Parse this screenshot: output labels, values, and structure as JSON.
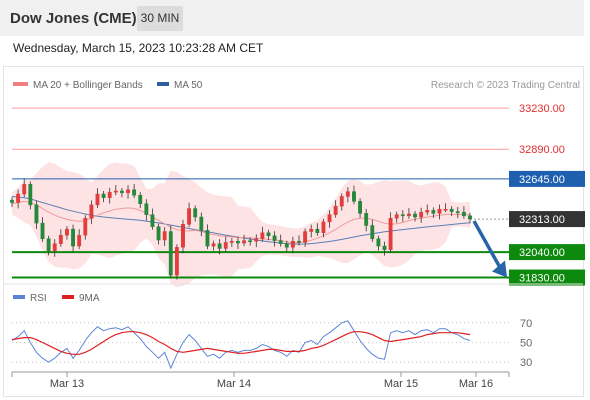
{
  "header": {
    "title": "Dow Jones (CME)",
    "timeframe": "30 MIN"
  },
  "datetime": "Wednesday, March 15, 2023 10:23:28 AM CET",
  "legend": {
    "ma20": {
      "label": "MA 20 + Bollinger Bands",
      "color": "#f08080"
    },
    "ma50": {
      "label": "MA 50",
      "color": "#2e5f9e"
    }
  },
  "research": "Research © 2023 Trading Central",
  "rsi_legend": {
    "rsi": {
      "label": "RSI",
      "color": "#5b84d8"
    },
    "ma9": {
      "label": "9MA",
      "color": "#e02020"
    }
  },
  "colors": {
    "bull": "#e23c3c",
    "bear": "#26883a",
    "support": "#0d8a0d",
    "resistance": "#ff9a9a",
    "pivot": "#1f5fb0",
    "last": "#333333",
    "arrow": "#2a64a8",
    "band": "#fde3e3"
  },
  "chart_data": {
    "type": "candlestick",
    "y_range": [
      31760,
      33330
    ],
    "last_price": 32313,
    "levels": [
      {
        "value": 33230,
        "label": "33230.00",
        "kind": "resistance"
      },
      {
        "value": 32890,
        "label": "32890.00",
        "kind": "resistance"
      },
      {
        "value": 32645,
        "label": "32645.00",
        "kind": "pivot"
      },
      {
        "value": 32313,
        "label": "32313.00",
        "kind": "last"
      },
      {
        "value": 32040,
        "label": "32040.00",
        "kind": "support"
      },
      {
        "value": 31830,
        "label": "31830.00",
        "kind": "support"
      }
    ],
    "x_ticks": [
      "Mar 13",
      "Mar 14",
      "Mar 15",
      "Mar 16"
    ],
    "forecast": {
      "from": 32313,
      "to": 31830
    },
    "closes": [
      32450,
      32520,
      32600,
      32430,
      32280,
      32150,
      32050,
      32110,
      32180,
      32230,
      32090,
      32180,
      32320,
      32430,
      32520,
      32490,
      32535,
      32545,
      32530,
      32555,
      32510,
      32440,
      32350,
      32250,
      32140,
      32210,
      31850,
      32080,
      32270,
      32400,
      32330,
      32220,
      32090,
      32110,
      32070,
      32120,
      32130,
      32115,
      32135,
      32130,
      32150,
      32200,
      32175,
      32135,
      32110,
      32080,
      32130,
      32120,
      32210,
      32230,
      32200,
      32290,
      32350,
      32420,
      32500,
      32540,
      32460,
      32360,
      32260,
      32150,
      32090,
      32060,
      32320,
      32350,
      32340,
      32355,
      32330,
      32370,
      32385,
      32360,
      32395,
      32395,
      32375,
      32370,
      32340,
      32313
    ],
    "ma20": [
      32440,
      32450,
      32460,
      32450,
      32430,
      32400,
      32370,
      32345,
      32325,
      32310,
      32300,
      32295,
      32300,
      32320,
      32345,
      32365,
      32380,
      32395,
      32400,
      32405,
      32400,
      32385,
      32360,
      32330,
      32300,
      32275,
      32245,
      32225,
      32215,
      32215,
      32220,
      32210,
      32195,
      32185,
      32175,
      32170,
      32165,
      32160,
      32160,
      32158,
      32155,
      32150,
      32145,
      32140,
      32135,
      32125,
      32118,
      32118,
      32125,
      32138,
      32155,
      32175,
      32200,
      32228,
      32260,
      32290,
      32310,
      32320,
      32320,
      32310,
      32295,
      32280,
      32270,
      32275,
      32285,
      32300,
      32312,
      32320,
      32330,
      32338,
      32345,
      32350,
      32352,
      32352,
      32350,
      32348
    ],
    "ma50": [
      32500,
      32495,
      32490,
      32480,
      32465,
      32450,
      32435,
      32420,
      32405,
      32390,
      32378,
      32366,
      32355,
      32345,
      32337,
      32330,
      32325,
      32320,
      32316,
      32312,
      32308,
      32303,
      32296,
      32289,
      32281,
      32272,
      32263,
      32253,
      32244,
      32235,
      32226,
      32217,
      32208,
      32199,
      32190,
      32181,
      32172,
      32164,
      32156,
      32148,
      32140,
      32133,
      32126,
      32120,
      32114,
      32110,
      32107,
      32106,
      32107,
      32110,
      32115,
      32121,
      32128,
      32136,
      32145,
      32155,
      32165,
      32175,
      32184,
      32192,
      32200,
      32208,
      32214,
      32220,
      32226,
      32232,
      32238,
      32243,
      32248,
      32253,
      32258,
      32263,
      32268,
      32273,
      32278,
      32283
    ],
    "rsi_axis": [
      70,
      50,
      30
    ],
    "rsi_range": [
      20,
      80
    ],
    "rsi": [
      52,
      56,
      62,
      50,
      40,
      34,
      30,
      34,
      40,
      44,
      34,
      42,
      52,
      60,
      66,
      62,
      64,
      65,
      63,
      66,
      60,
      54,
      46,
      40,
      34,
      40,
      24,
      38,
      50,
      58,
      52,
      44,
      36,
      38,
      34,
      40,
      42,
      40,
      42,
      42,
      44,
      48,
      46,
      42,
      40,
      36,
      42,
      40,
      50,
      52,
      48,
      56,
      60,
      65,
      70,
      72,
      62,
      52,
      44,
      38,
      34,
      33,
      60,
      62,
      60,
      62,
      58,
      62,
      63,
      60,
      64,
      64,
      60,
      58,
      54,
      52
    ],
    "rsi_ma": [
      53,
      54,
      55,
      55,
      53,
      50,
      47,
      44,
      41,
      39,
      38,
      38,
      40,
      43,
      47,
      51,
      55,
      58,
      60,
      61,
      61,
      60,
      58,
      55,
      51,
      48,
      44,
      41,
      40,
      41,
      42,
      43,
      44,
      43,
      42,
      41,
      40,
      39,
      39,
      40,
      41,
      42,
      43,
      43,
      42,
      41,
      41,
      41,
      42,
      44,
      45,
      47,
      50,
      53,
      56,
      59,
      61,
      61,
      60,
      58,
      55,
      52,
      51,
      52,
      53,
      54,
      55,
      56,
      58,
      59,
      60,
      60,
      60,
      60,
      59,
      58
    ]
  }
}
